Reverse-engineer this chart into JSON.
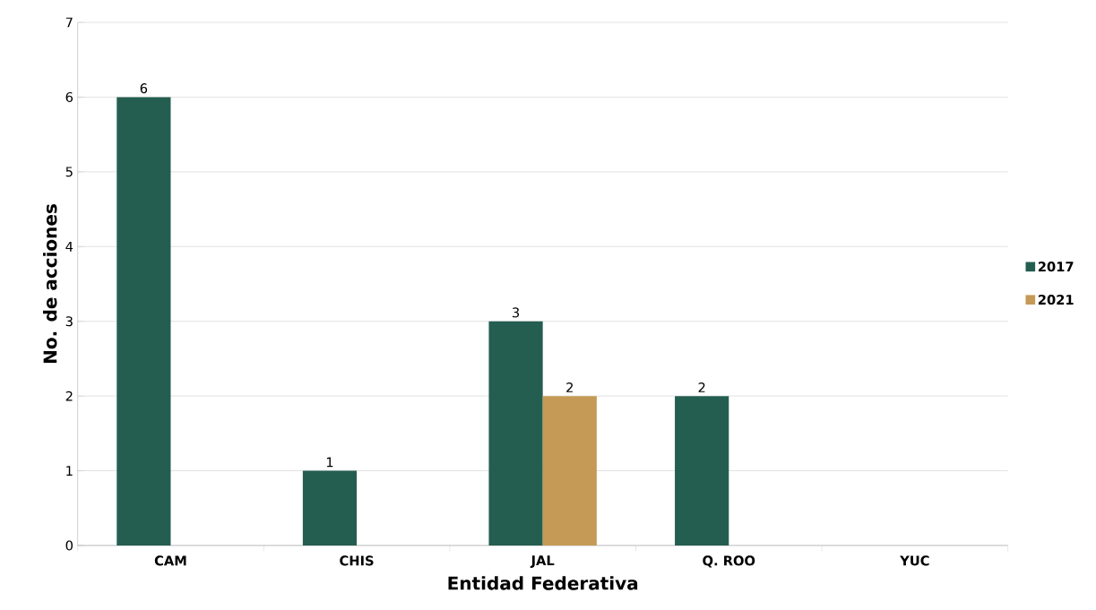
{
  "chart_data": {
    "type": "bar",
    "xlabel": "Entidad Federativa",
    "ylabel": "No. de acciones",
    "categories": [
      "CAM",
      "CHIS",
      "JAL",
      "Q. ROO",
      "YUC"
    ],
    "series": [
      {
        "name": "2017",
        "color": "#245e51",
        "values": [
          6,
          1,
          3,
          2,
          null
        ],
        "value_labels": [
          "6",
          "1",
          "3",
          "2",
          null
        ]
      },
      {
        "name": "2021",
        "color": "#c49a56",
        "values": [
          null,
          null,
          2,
          null,
          null
        ],
        "value_labels": [
          null,
          null,
          "2",
          null,
          null
        ]
      }
    ],
    "ylim": [
      0,
      7
    ],
    "yticks": [
      0,
      1,
      2,
      3,
      4,
      5,
      6,
      7
    ],
    "grid": "y",
    "legend": "right"
  }
}
